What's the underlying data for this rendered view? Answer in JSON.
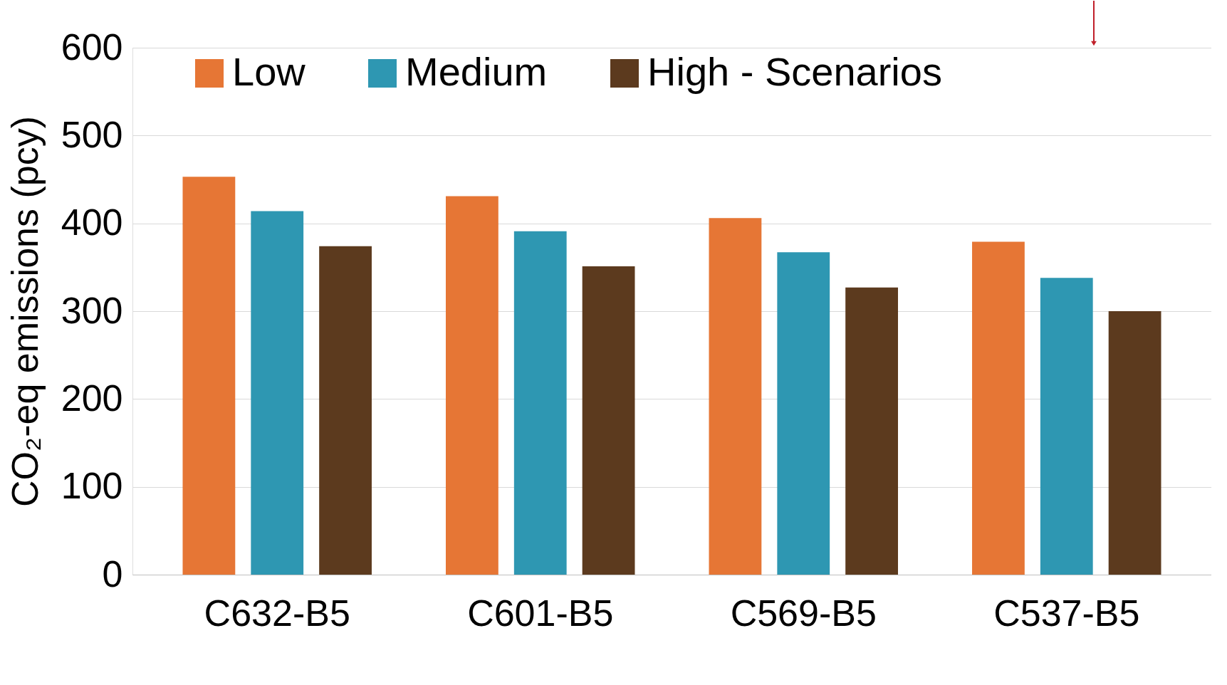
{
  "chart_data": {
    "type": "bar",
    "ylabel": "CO₂-eq emissions (pcy)",
    "categories": [
      "C632-B5",
      "C601-B5",
      "C569-B5",
      "C537-B5"
    ],
    "series": [
      {
        "name": "Low",
        "color": "#e67635",
        "values": [
          453,
          431,
          406,
          379
        ]
      },
      {
        "name": "Medium",
        "color": "#2e97b2",
        "values": [
          414,
          391,
          367,
          338
        ]
      },
      {
        "name": "High - Scenarios",
        "color": "#5c3a1e",
        "values": [
          374,
          351,
          327,
          300
        ]
      }
    ],
    "ylim": [
      0,
      600
    ],
    "yticks": [
      0,
      100,
      200,
      300,
      400,
      500,
      600
    ],
    "grid": "y",
    "legend": "top"
  }
}
